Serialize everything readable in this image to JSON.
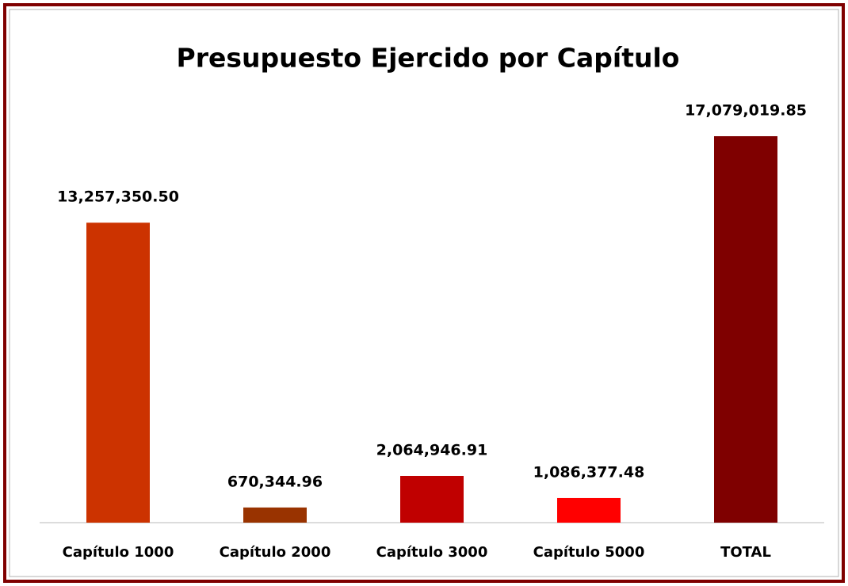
{
  "chart_data": {
    "type": "bar",
    "title": "Presupuesto Ejercido por Capítulo",
    "categories": [
      "Capítulo 1000",
      "Capítulo 2000",
      "Capítulo 3000",
      "Capítulo 5000",
      "TOTAL"
    ],
    "values": [
      13257350.5,
      670344.96,
      2064946.91,
      1086377.48,
      17079019.85
    ],
    "value_labels": [
      "13,257,350.50",
      "670,344.96",
      "2,064,946.91",
      "1,086,377.48",
      "17,079,019.85"
    ],
    "colors": [
      "#cc3300",
      "#993300",
      "#c00000",
      "#ff0000",
      "#7f0000"
    ]
  }
}
